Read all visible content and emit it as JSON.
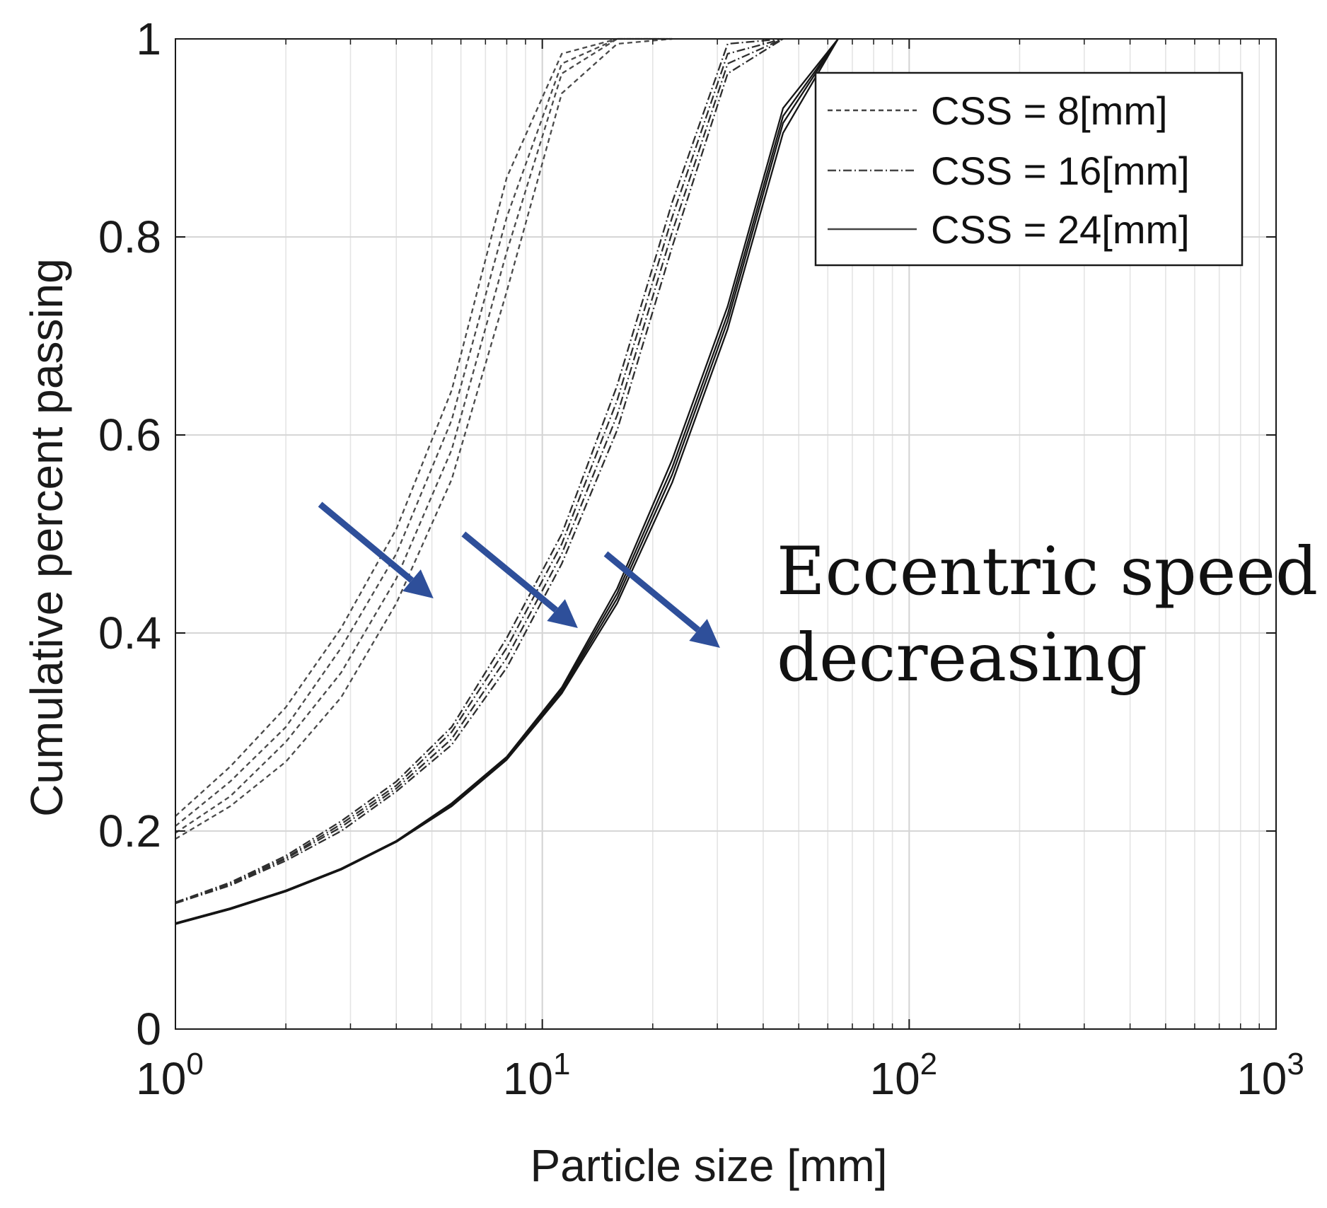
{
  "chart_data": {
    "type": "line",
    "xscale": "log",
    "xlim": [
      1,
      1000
    ],
    "ylim": [
      0,
      1
    ],
    "grid": true,
    "title": "",
    "xlabel": "Particle size [mm]",
    "ylabel": "Cumulative percent passing",
    "xticks": [
      {
        "value": 1,
        "base": "10",
        "exp": "0"
      },
      {
        "value": 10,
        "base": "10",
        "exp": "1"
      },
      {
        "value": 100,
        "base": "10",
        "exp": "2"
      },
      {
        "value": 1000,
        "base": "10",
        "exp": "3"
      }
    ],
    "yticks": [
      {
        "value": 0,
        "label": "0"
      },
      {
        "value": 0.2,
        "label": "0.2"
      },
      {
        "value": 0.4,
        "label": "0.4"
      },
      {
        "value": 0.6,
        "label": "0.6"
      },
      {
        "value": 0.8,
        "label": "0.8"
      },
      {
        "value": 1,
        "label": "1"
      }
    ],
    "legend": {
      "position": "top-right",
      "entries": [
        {
          "label": "CSS = 8[mm]",
          "style": "dashed"
        },
        {
          "label": "CSS = 16[mm]",
          "style": "dashdot"
        },
        {
          "label": "CSS = 24[mm]",
          "style": "solid"
        }
      ]
    },
    "series": [
      {
        "name": "CSS = 8[mm] (speed 1)",
        "group": "CSS = 8[mm]",
        "style": "dashed",
        "x": [
          1,
          1.41,
          2,
          2.83,
          4,
          5.66,
          8,
          11.3,
          16,
          22.6
        ],
        "y": [
          0.215,
          0.265,
          0.325,
          0.405,
          0.505,
          0.645,
          0.86,
          0.985,
          1.0,
          1.0
        ]
      },
      {
        "name": "CSS = 8[mm] (speed 2)",
        "group": "CSS = 8[mm]",
        "style": "dashed",
        "x": [
          1,
          1.41,
          2,
          2.83,
          4,
          5.66,
          8,
          11.3,
          16,
          22.6
        ],
        "y": [
          0.205,
          0.25,
          0.305,
          0.385,
          0.48,
          0.615,
          0.82,
          0.975,
          1.0,
          1.0
        ]
      },
      {
        "name": "CSS = 8[mm] (speed 3)",
        "group": "CSS = 8[mm]",
        "style": "dashed",
        "x": [
          1,
          1.41,
          2,
          2.83,
          4,
          5.66,
          8,
          11.3,
          16,
          22.6
        ],
        "y": [
          0.198,
          0.235,
          0.29,
          0.36,
          0.455,
          0.585,
          0.785,
          0.965,
          1.0,
          1.0
        ]
      },
      {
        "name": "CSS = 8[mm] (speed 4)",
        "group": "CSS = 8[mm]",
        "style": "dashed",
        "x": [
          1,
          1.41,
          2,
          2.83,
          4,
          5.66,
          8,
          11.3,
          16,
          22.6
        ],
        "y": [
          0.192,
          0.225,
          0.27,
          0.335,
          0.43,
          0.555,
          0.745,
          0.945,
          0.995,
          1.0
        ]
      },
      {
        "name": "CSS = 16[mm] (speed 1)",
        "group": "CSS = 16[mm]",
        "style": "dashdot",
        "x": [
          1,
          1.41,
          2,
          2.83,
          4,
          5.66,
          8,
          11.3,
          16,
          22.6,
          32,
          45.3
        ],
        "y": [
          0.128,
          0.148,
          0.175,
          0.21,
          0.25,
          0.305,
          0.395,
          0.5,
          0.65,
          0.835,
          0.995,
          1.0
        ]
      },
      {
        "name": "CSS = 16[mm] (speed 2)",
        "group": "CSS = 16[mm]",
        "style": "dashdot",
        "x": [
          1,
          1.41,
          2,
          2.83,
          4,
          5.66,
          8,
          11.3,
          16,
          22.6,
          32,
          45.3
        ],
        "y": [
          0.128,
          0.147,
          0.173,
          0.207,
          0.246,
          0.3,
          0.385,
          0.49,
          0.635,
          0.82,
          0.985,
          1.0
        ]
      },
      {
        "name": "CSS = 16[mm] (speed 3)",
        "group": "CSS = 16[mm]",
        "style": "dashdot",
        "x": [
          1,
          1.41,
          2,
          2.83,
          4,
          5.66,
          8,
          11.3,
          16,
          22.6,
          32,
          45.3
        ],
        "y": [
          0.127,
          0.146,
          0.172,
          0.204,
          0.243,
          0.293,
          0.375,
          0.48,
          0.62,
          0.805,
          0.975,
          1.0
        ]
      },
      {
        "name": "CSS = 16[mm] (speed 4)",
        "group": "CSS = 16[mm]",
        "style": "dashdot",
        "x": [
          1,
          1.41,
          2,
          2.83,
          4,
          5.66,
          8,
          11.3,
          16,
          22.6,
          32,
          45.3
        ],
        "y": [
          0.127,
          0.145,
          0.17,
          0.2,
          0.24,
          0.287,
          0.365,
          0.47,
          0.605,
          0.79,
          0.965,
          1.0
        ]
      },
      {
        "name": "CSS = 24[mm] (speed 1)",
        "group": "CSS = 24[mm]",
        "style": "solid",
        "x": [
          1,
          1.41,
          2,
          2.83,
          4,
          5.66,
          8,
          11.3,
          16,
          22.6,
          32,
          45.3,
          64
        ],
        "y": [
          0.107,
          0.122,
          0.14,
          0.162,
          0.19,
          0.228,
          0.275,
          0.345,
          0.445,
          0.575,
          0.73,
          0.93,
          1.0
        ]
      },
      {
        "name": "CSS = 24[mm] (speed 2)",
        "group": "CSS = 24[mm]",
        "style": "solid",
        "x": [
          1,
          1.41,
          2,
          2.83,
          4,
          5.66,
          8,
          11.3,
          16,
          22.6,
          32,
          45.3,
          64
        ],
        "y": [
          0.107,
          0.122,
          0.14,
          0.162,
          0.19,
          0.227,
          0.274,
          0.343,
          0.44,
          0.567,
          0.722,
          0.922,
          1.0
        ]
      },
      {
        "name": "CSS = 24[mm] (speed 3)",
        "group": "CSS = 24[mm]",
        "style": "solid",
        "x": [
          1,
          1.41,
          2,
          2.83,
          4,
          5.66,
          8,
          11.3,
          16,
          22.6,
          32,
          45.3,
          64
        ],
        "y": [
          0.106,
          0.121,
          0.139,
          0.161,
          0.189,
          0.226,
          0.273,
          0.341,
          0.435,
          0.56,
          0.715,
          0.915,
          1.0
        ]
      },
      {
        "name": "CSS = 24[mm] (speed 4)",
        "group": "CSS = 24[mm]",
        "style": "solid",
        "x": [
          1,
          1.41,
          2,
          2.83,
          4,
          5.66,
          8,
          11.3,
          16,
          22.6,
          32,
          45.3,
          64
        ],
        "y": [
          0.106,
          0.121,
          0.139,
          0.161,
          0.189,
          0.225,
          0.272,
          0.339,
          0.43,
          0.552,
          0.707,
          0.905,
          1.0
        ]
      }
    ],
    "annotations": {
      "text_lines": [
        "Eccentric speed",
        "decreasing"
      ],
      "arrows": [
        {
          "from": [
            2.48,
            0.53
          ],
          "to": [
            5.05,
            0.435
          ]
        },
        {
          "from": [
            6.1,
            0.5
          ],
          "to": [
            12.5,
            0.405
          ]
        },
        {
          "from": [
            14.9,
            0.48
          ],
          "to": [
            30.5,
            0.385
          ]
        }
      ],
      "arrow_color": "#2e4f9a"
    }
  }
}
